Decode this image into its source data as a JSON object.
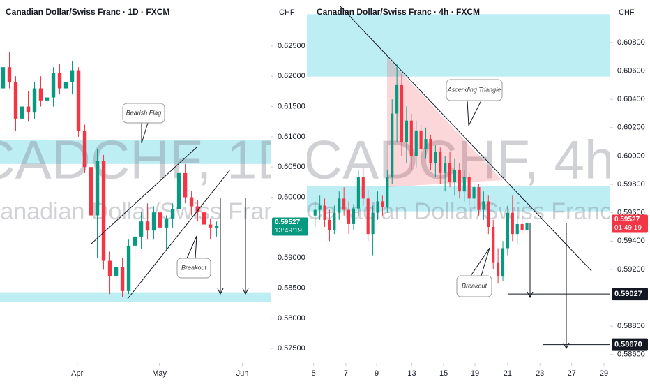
{
  "chart_data": [
    {
      "type": "candlestick",
      "title": "Canadian Dollar/Swiss Franc · 1D · FXCM",
      "axis_label": "CHF",
      "watermark_symbol": "CADCHF, 1D",
      "watermark_name": "Canadian Dollar/Swiss Franc",
      "up_color": "#089981",
      "down_color": "#f23645",
      "zone_color": "#b2ebf2",
      "ohlc": [
        [
          0.618,
          0.623,
          0.616,
          0.6215
        ],
        [
          0.6215,
          0.624,
          0.618,
          0.619
        ],
        [
          0.619,
          0.62,
          0.611,
          0.613
        ],
        [
          0.613,
          0.616,
          0.61,
          0.615
        ],
        [
          0.615,
          0.6175,
          0.6125,
          0.614
        ],
        [
          0.614,
          0.619,
          0.613,
          0.618
        ],
        [
          0.618,
          0.62,
          0.615,
          0.616
        ],
        [
          0.616,
          0.6175,
          0.612,
          0.6165
        ],
        [
          0.6165,
          0.6215,
          0.615,
          0.6205
        ],
        [
          0.6205,
          0.622,
          0.617,
          0.618
        ],
        [
          0.618,
          0.62,
          0.616,
          0.619
        ],
        [
          0.619,
          0.6225,
          0.617,
          0.621
        ],
        [
          0.621,
          0.6215,
          0.61,
          0.611
        ],
        [
          0.611,
          0.612,
          0.604,
          0.605
        ],
        [
          0.605,
          0.606,
          0.596,
          0.597
        ],
        [
          0.597,
          0.608,
          0.59,
          0.606
        ],
        [
          0.606,
          0.607,
          0.588,
          0.5895
        ],
        [
          0.5895,
          0.591,
          0.584,
          0.587
        ],
        [
          0.587,
          0.59,
          0.585,
          0.5885
        ],
        [
          0.5885,
          0.59,
          0.5835,
          0.5845
        ],
        [
          0.5845,
          0.593,
          0.584,
          0.592
        ],
        [
          0.592,
          0.595,
          0.59,
          0.5935
        ],
        [
          0.5935,
          0.5975,
          0.5915,
          0.596
        ],
        [
          0.596,
          0.599,
          0.593,
          0.5945
        ],
        [
          0.5945,
          0.5985,
          0.593,
          0.5975
        ],
        [
          0.5975,
          0.5995,
          0.594,
          0.595
        ],
        [
          0.595,
          0.597,
          0.5915,
          0.5965
        ],
        [
          0.5965,
          0.599,
          0.595,
          0.598
        ],
        [
          0.598,
          0.605,
          0.5975,
          0.604
        ],
        [
          0.604,
          0.6055,
          0.599,
          0.6
        ],
        [
          0.6,
          0.601,
          0.597,
          0.5985
        ],
        [
          0.5985,
          0.5995,
          0.596,
          0.5975
        ],
        [
          0.5975,
          0.5985,
          0.5945,
          0.5955
        ],
        [
          0.5955,
          0.5965,
          0.593,
          0.595
        ],
        [
          0.595,
          0.596,
          0.5935,
          0.59527
        ]
      ],
      "xlim": [
        -0.5,
        42.6
      ],
      "xticks": [
        {
          "value": 11.8,
          "label": "Apr"
        },
        {
          "value": 24.9,
          "label": "May"
        },
        {
          "value": 38.1,
          "label": "Jun"
        }
      ],
      "ylim": [
        0.5726,
        0.6326
      ],
      "yticks": [
        {
          "value": 0.625,
          "label": "0.62500"
        },
        {
          "value": 0.62,
          "label": "0.62000"
        },
        {
          "value": 0.615,
          "label": "0.61500"
        },
        {
          "value": 0.61,
          "label": "0.61000"
        },
        {
          "value": 0.605,
          "label": "0.60500"
        },
        {
          "value": 0.6,
          "label": "0.60000"
        },
        {
          "value": 0.595,
          "label": "0.59500"
        },
        {
          "value": 0.59,
          "label": "0.59000"
        },
        {
          "value": 0.585,
          "label": "0.58500"
        },
        {
          "value": 0.58,
          "label": "0.58000"
        },
        {
          "value": 0.575,
          "label": "0.57500"
        }
      ],
      "zones": [
        [
          0.6095,
          0.6055
        ],
        [
          0.5843,
          0.5827
        ]
      ],
      "last_price": 0.59527,
      "countdown": "13:49:19",
      "annotations": [
        "Bearish Flag",
        "Breakout"
      ]
    },
    {
      "type": "candlestick",
      "title": "Canadian Dollar/Swiss Franc · 4h · FXCM",
      "axis_label": "CHF",
      "watermark_symbol": "CADCHF, 4h",
      "watermark_name": "Canadian Dollar/Swiss Franc",
      "up_color": "#089981",
      "down_color": "#f23645",
      "zone_color": "#b2ebf2",
      "ohlc": [
        [
          0.5958,
          0.5968,
          0.595,
          0.5962
        ],
        [
          0.5962,
          0.5972,
          0.5955,
          0.5965
        ],
        [
          0.5965,
          0.597,
          0.595,
          0.5955
        ],
        [
          0.5955,
          0.5962,
          0.594,
          0.5948
        ],
        [
          0.5948,
          0.5965,
          0.5945,
          0.596
        ],
        [
          0.596,
          0.5975,
          0.5955,
          0.597
        ],
        [
          0.597,
          0.5978,
          0.5958,
          0.5962
        ],
        [
          0.5962,
          0.5968,
          0.5945,
          0.5952
        ],
        [
          0.5952,
          0.5966,
          0.5948,
          0.5963
        ],
        [
          0.5963,
          0.599,
          0.5958,
          0.5985
        ],
        [
          0.5985,
          0.5992,
          0.5965,
          0.597
        ],
        [
          0.597,
          0.5976,
          0.594,
          0.5945
        ],
        [
          0.5945,
          0.5965,
          0.593,
          0.596
        ],
        [
          0.596,
          0.5975,
          0.5955,
          0.5968
        ],
        [
          0.5968,
          0.5972,
          0.5958,
          0.5964
        ],
        [
          0.5964,
          0.599,
          0.596,
          0.5985
        ],
        [
          0.5985,
          0.604,
          0.598,
          0.603
        ],
        [
          0.603,
          0.6065,
          0.601,
          0.605
        ],
        [
          0.605,
          0.6058,
          0.6,
          0.601
        ],
        [
          0.601,
          0.6035,
          0.5995,
          0.6025
        ],
        [
          0.6025,
          0.603,
          0.599,
          0.6
        ],
        [
          0.6,
          0.6025,
          0.5992,
          0.6018
        ],
        [
          0.6018,
          0.6022,
          0.5995,
          0.6005
        ],
        [
          0.6005,
          0.602,
          0.5998,
          0.6012
        ],
        [
          0.6012,
          0.6015,
          0.599,
          0.5995
        ],
        [
          0.5995,
          0.6008,
          0.5985,
          0.6003
        ],
        [
          0.6003,
          0.6006,
          0.598,
          0.5988
        ],
        [
          0.5988,
          0.6,
          0.5975,
          0.5995
        ],
        [
          0.5995,
          0.6003,
          0.5978,
          0.5982
        ],
        [
          0.5982,
          0.5998,
          0.5972,
          0.599
        ],
        [
          0.599,
          0.5995,
          0.597,
          0.5975
        ],
        [
          0.5975,
          0.599,
          0.5968,
          0.5985
        ],
        [
          0.5985,
          0.5988,
          0.5965,
          0.597
        ],
        [
          0.597,
          0.5982,
          0.5962,
          0.5978
        ],
        [
          0.5978,
          0.598,
          0.5958,
          0.5962
        ],
        [
          0.5962,
          0.5975,
          0.5955,
          0.5968
        ],
        [
          0.5968,
          0.5972,
          0.5945,
          0.595
        ],
        [
          0.595,
          0.5955,
          0.592,
          0.5925
        ],
        [
          0.5925,
          0.5935,
          0.591,
          0.5915
        ],
        [
          0.5915,
          0.594,
          0.5912,
          0.5935
        ],
        [
          0.5935,
          0.5965,
          0.593,
          0.596
        ],
        [
          0.596,
          0.5972,
          0.594,
          0.5945
        ],
        [
          0.5945,
          0.5958,
          0.5938,
          0.5952
        ],
        [
          0.5952,
          0.596,
          0.5945,
          0.5948
        ],
        [
          0.5948,
          0.5958,
          0.5944,
          0.59527
        ]
      ],
      "xlim": [
        -1.7,
        61.3
      ],
      "xticks": [
        {
          "value": -0.3,
          "label": "5"
        },
        {
          "value": 6.4,
          "label": "7"
        },
        {
          "value": 12.8,
          "label": "9"
        },
        {
          "value": 20.1,
          "label": "13"
        },
        {
          "value": 26.7,
          "label": "15"
        },
        {
          "value": 33.2,
          "label": "19"
        },
        {
          "value": 40,
          "label": "21"
        },
        {
          "value": 46.7,
          "label": "23"
        },
        {
          "value": 53.3,
          "label": "27"
        },
        {
          "value": 60,
          "label": "29"
        }
      ],
      "ylim": [
        0.5854,
        0.611
      ],
      "yticks": [
        {
          "value": 0.608,
          "label": "0.60800"
        },
        {
          "value": 0.606,
          "label": "0.60600"
        },
        {
          "value": 0.604,
          "label": "0.60400"
        },
        {
          "value": 0.602,
          "label": "0.60200"
        },
        {
          "value": 0.6,
          "label": "0.60000"
        },
        {
          "value": 0.598,
          "label": "0.59800"
        },
        {
          "value": 0.596,
          "label": "0.59600"
        },
        {
          "value": 0.594,
          "label": "0.59400"
        },
        {
          "value": 0.592,
          "label": "0.59200"
        },
        {
          "value": 0.588,
          "label": "0.58800"
        },
        {
          "value": 0.586,
          "label": "0.58600"
        }
      ],
      "zones": [
        [
          0.61,
          0.6056
        ],
        [
          0.5979,
          0.5961
        ]
      ],
      "last_price": 0.59527,
      "countdown": "01:49:19",
      "targets": [
        0.59027,
        {
          "value": 0.5867,
          "label": "0.58670"
        }
      ],
      "annotations": [
        "Ascending Triangle",
        "Breakout"
      ]
    }
  ]
}
